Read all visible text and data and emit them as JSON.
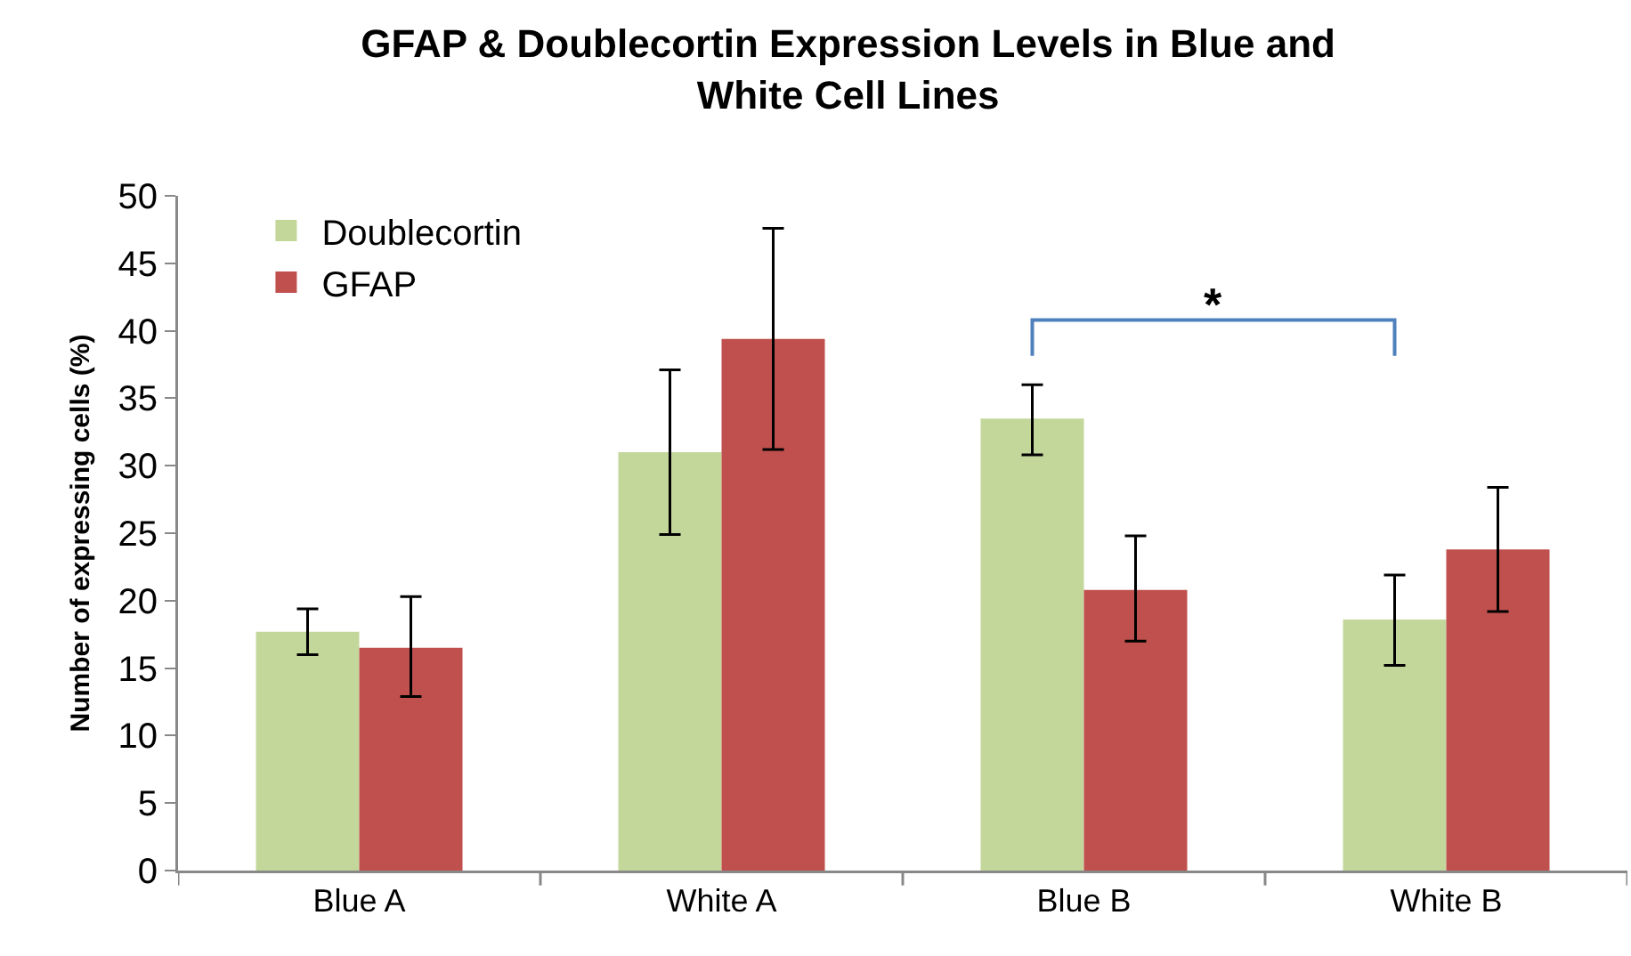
{
  "chart_data": {
    "type": "bar",
    "title": "GFAP & Doublecortin Expression Levels in Blue and White Cell Lines",
    "ylabel": "Number of expressing cells (%)",
    "categories": [
      "Blue A",
      "White A",
      "Blue B",
      "White B"
    ],
    "series": [
      {
        "name": "Doublecortin",
        "color": "#c4d79b",
        "values": [
          17.7,
          31.0,
          33.5,
          18.6
        ],
        "errors": [
          [
            16.0,
            19.4
          ],
          [
            24.9,
            37.1
          ],
          [
            30.8,
            36.0
          ],
          [
            15.2,
            21.9
          ]
        ]
      },
      {
        "name": "GFAP",
        "color": "#c0504d",
        "values": [
          16.5,
          39.4,
          20.8,
          23.8
        ],
        "errors": [
          [
            12.9,
            20.3
          ],
          [
            31.2,
            47.6
          ],
          [
            17.0,
            24.8
          ],
          [
            19.2,
            28.4
          ]
        ]
      }
    ],
    "ylim": [
      0,
      50
    ],
    "yticks": [
      0,
      5,
      10,
      15,
      20,
      25,
      30,
      35,
      40,
      45,
      50
    ],
    "grid": false,
    "legend": "top left",
    "annotations": [
      "*"
    ]
  }
}
